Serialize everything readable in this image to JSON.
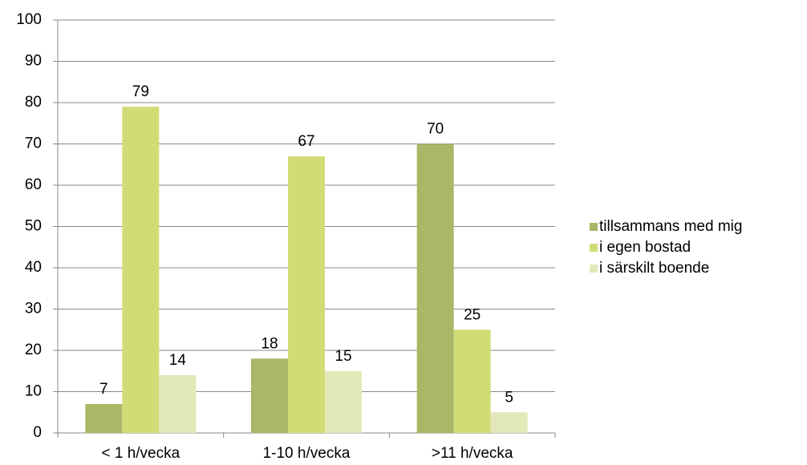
{
  "chart_data": {
    "type": "bar",
    "categories": [
      "< 1 h/vecka",
      "1-10 h/vecka",
      ">11 h/vecka"
    ],
    "series": [
      {
        "name": "tillsammans med mig",
        "color": "#a9b766",
        "values": [
          7,
          18,
          70
        ]
      },
      {
        "name": "i egen bostad",
        "color": "#d2dc76",
        "values": [
          79,
          67,
          25
        ]
      },
      {
        "name": "i särskilt boende",
        "color": "#e3e8b9",
        "values": [
          14,
          15,
          5
        ]
      }
    ],
    "ylim": [
      0,
      100
    ],
    "yticks": [
      0,
      10,
      20,
      30,
      40,
      50,
      60,
      70,
      80,
      90,
      100
    ],
    "grid": true,
    "legend": "right"
  }
}
